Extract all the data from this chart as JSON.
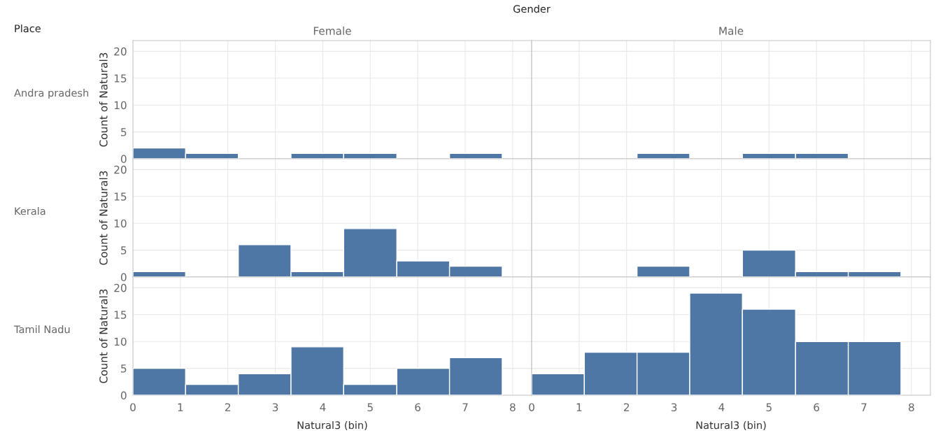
{
  "chart_data": [
    {
      "type": "histogram",
      "title": "Female",
      "ylabel": "Count of Natural3",
      "annotations": [
        "Gender",
        "Place",
        "Andra pradesh"
      ],
      "bins": [
        0,
        1.11,
        2.22,
        3.33,
        4.44,
        5.56,
        6.67,
        7.78
      ],
      "values": [
        2,
        1,
        0,
        1,
        1,
        0,
        1
      ],
      "color": "#4e77a5",
      "xlim": [
        0,
        8.4
      ],
      "xticks": [
        0,
        1,
        2,
        3,
        4,
        5,
        6,
        7,
        8
      ],
      "ylim": [
        0,
        22
      ],
      "yticks": [
        0,
        5,
        10,
        15,
        20
      ],
      "grid": true,
      "tick_labels": "y"
    },
    {
      "type": "histogram",
      "title": "Male",
      "bins": [
        2.22,
        3.33,
        4.44,
        5.56,
        6.67
      ],
      "values": [
        1,
        0,
        1,
        1
      ],
      "color": "#4e77a5",
      "xlim": [
        0,
        8.4
      ],
      "xticks": [
        0,
        1,
        2,
        3,
        4,
        5,
        6,
        7,
        8
      ],
      "ylim": [
        0,
        22
      ],
      "yticks": [
        0,
        5,
        10,
        15,
        20
      ],
      "grid": true,
      "tick_labels": false
    },
    {
      "type": "histogram",
      "ylabel": "Count of Natural3",
      "annotations": [
        "Kerala"
      ],
      "bins": [
        0,
        1.11,
        2.22,
        3.33,
        4.44,
        5.56,
        6.67,
        7.78
      ],
      "values": [
        1,
        0,
        6,
        1,
        9,
        3,
        2
      ],
      "color": "#4e77a5",
      "xlim": [
        0,
        8.4
      ],
      "xticks": [
        0,
        1,
        2,
        3,
        4,
        5,
        6,
        7,
        8
      ],
      "ylim": [
        0,
        22
      ],
      "yticks": [
        0,
        5,
        10,
        15,
        20
      ],
      "grid": true,
      "tick_labels": "y"
    },
    {
      "type": "histogram",
      "bins": [
        2.22,
        3.33,
        4.44,
        5.56,
        6.67,
        7.78
      ],
      "values": [
        2,
        0,
        5,
        1,
        1
      ],
      "color": "#4e77a5",
      "xlim": [
        0,
        8.4
      ],
      "xticks": [
        0,
        1,
        2,
        3,
        4,
        5,
        6,
        7,
        8
      ],
      "ylim": [
        0,
        22
      ],
      "yticks": [
        0,
        5,
        10,
        15,
        20
      ],
      "grid": true,
      "tick_labels": false
    },
    {
      "type": "histogram",
      "xlabel": "Natural3 (bin)",
      "ylabel": "Count of Natural3",
      "annotations": [
        "Tamil Nadu"
      ],
      "bins": [
        0,
        1.11,
        2.22,
        3.33,
        4.44,
        5.56,
        6.67,
        7.78
      ],
      "values": [
        5,
        2,
        4,
        9,
        2,
        5,
        7
      ],
      "color": "#4e77a5",
      "xlim": [
        0,
        8.4
      ],
      "xticks": [
        0,
        1,
        2,
        3,
        4,
        5,
        6,
        7,
        8
      ],
      "ylim": [
        0,
        22
      ],
      "yticks": [
        0,
        5,
        10,
        15,
        20
      ],
      "grid": true
    },
    {
      "type": "histogram",
      "xlabel": "Natural3 (bin)",
      "bins": [
        0,
        1.11,
        2.22,
        3.33,
        4.44,
        5.56,
        6.67,
        7.78
      ],
      "values": [
        4,
        8,
        8,
        19,
        16,
        10,
        10
      ],
      "color": "#4e77a5",
      "xlim": [
        0,
        8.4
      ],
      "xticks": [
        0,
        1,
        2,
        3,
        4,
        5,
        6,
        7,
        8
      ],
      "ylim": [
        0,
        22
      ],
      "yticks": [
        0,
        5,
        10,
        15,
        20
      ],
      "grid": true,
      "tick_labels": "x"
    }
  ]
}
